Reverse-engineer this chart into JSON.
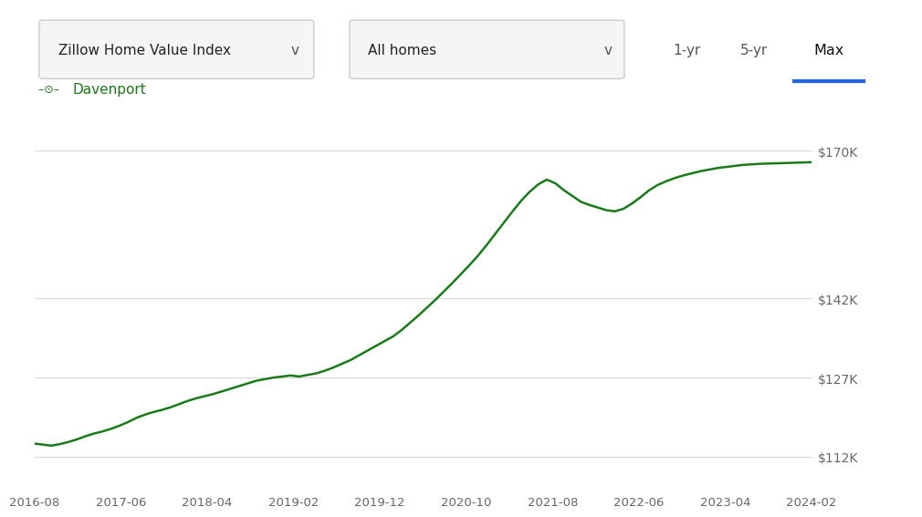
{
  "line_color": "#1a7a1a",
  "background_color": "#ffffff",
  "grid_color": "#d8d8d8",
  "ui": {
    "dropdown1": "Zillow Home Value Index",
    "dropdown2": "All homes",
    "btn1": "1-yr",
    "btn2": "5-yr",
    "btn3": "Max",
    "btn3_underline_color": "#2563eb",
    "dropdown_border_color": "#cccccc",
    "dropdown_bg": "#f5f5f5"
  },
  "legend_label": "Davenport",
  "ytick_labels": [
    "$112K",
    "$127K",
    "$142K",
    "$170K"
  ],
  "ytick_values": [
    112000,
    127000,
    142000,
    170000
  ],
  "xtick_labels": [
    "2016-08",
    "2017-06",
    "2018-04",
    "2019-02",
    "2019-12",
    "2020-10",
    "2021-08",
    "2022-06",
    "2023-04",
    "2024-02"
  ],
  "ylim": [
    106000,
    180000
  ],
  "data_y": [
    114500,
    114300,
    114100,
    114400,
    114800,
    115300,
    115900,
    116400,
    116800,
    117300,
    117900,
    118600,
    119400,
    120000,
    120500,
    120900,
    121400,
    122000,
    122600,
    123100,
    123500,
    123900,
    124400,
    124900,
    125400,
    125900,
    126400,
    126700,
    127000,
    127200,
    127400,
    127200,
    127500,
    127800,
    128300,
    128900,
    129600,
    130300,
    131200,
    132100,
    133000,
    133900,
    134800,
    136000,
    137400,
    138800,
    140300,
    141800,
    143400,
    145000,
    146700,
    148400,
    150200,
    152200,
    154300,
    156400,
    158500,
    160500,
    162200,
    163600,
    164500,
    163800,
    162500,
    161400,
    160300,
    159700,
    159200,
    158700,
    158500,
    159000,
    160000,
    161200,
    162500,
    163500,
    164200,
    164800,
    165300,
    165700,
    166100,
    166400,
    166700,
    166900,
    167100,
    167300,
    167400,
    167500,
    167550,
    167600,
    167650,
    167700,
    167750,
    167800
  ]
}
